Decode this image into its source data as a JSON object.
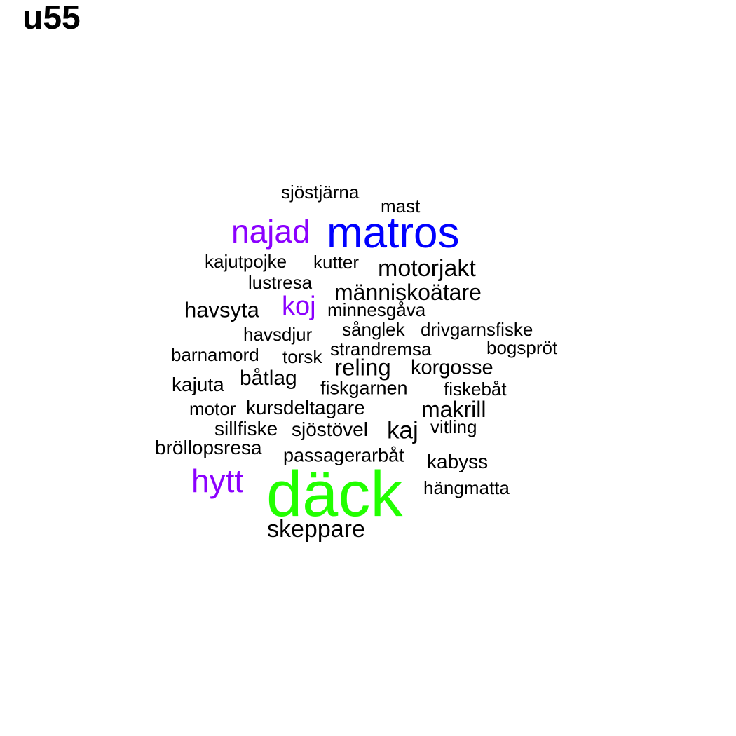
{
  "title": "u55",
  "colors": {
    "default": "#000000",
    "blue": "#0000ff",
    "purple": "#8b00ff",
    "green": "#22ff00"
  },
  "words": [
    {
      "text": "sjöstjärna",
      "color": "#000000"
    },
    {
      "text": "mast",
      "color": "#000000"
    },
    {
      "text": "najad",
      "color": "#8b00ff"
    },
    {
      "text": "matros",
      "color": "#0000ff"
    },
    {
      "text": "kajutpojke",
      "color": "#000000"
    },
    {
      "text": "kutter",
      "color": "#000000"
    },
    {
      "text": "motorjakt",
      "color": "#000000"
    },
    {
      "text": "lustresa",
      "color": "#000000"
    },
    {
      "text": "människoätare",
      "color": "#000000"
    },
    {
      "text": "havsyta",
      "color": "#000000"
    },
    {
      "text": "koj",
      "color": "#8b00ff"
    },
    {
      "text": "minnesgåva",
      "color": "#000000"
    },
    {
      "text": "havsdjur",
      "color": "#000000"
    },
    {
      "text": "sånglek",
      "color": "#000000"
    },
    {
      "text": "drivgarnsfiske",
      "color": "#000000"
    },
    {
      "text": "barnamord",
      "color": "#000000"
    },
    {
      "text": "torsk",
      "color": "#000000"
    },
    {
      "text": "strandremsa",
      "color": "#000000"
    },
    {
      "text": "bogspröt",
      "color": "#000000"
    },
    {
      "text": "reling",
      "color": "#000000"
    },
    {
      "text": "korgosse",
      "color": "#000000"
    },
    {
      "text": "kajuta",
      "color": "#000000"
    },
    {
      "text": "båtlag",
      "color": "#000000"
    },
    {
      "text": "fiskgarnen",
      "color": "#000000"
    },
    {
      "text": "fiskebåt",
      "color": "#000000"
    },
    {
      "text": "motor",
      "color": "#000000"
    },
    {
      "text": "kursdeltagare",
      "color": "#000000"
    },
    {
      "text": "makrill",
      "color": "#000000"
    },
    {
      "text": "sillfiske",
      "color": "#000000"
    },
    {
      "text": "sjöstövel",
      "color": "#000000"
    },
    {
      "text": "kaj",
      "color": "#000000"
    },
    {
      "text": "vitling",
      "color": "#000000"
    },
    {
      "text": "bröllopsresa",
      "color": "#000000"
    },
    {
      "text": "passagerarbåt",
      "color": "#000000"
    },
    {
      "text": "kabyss",
      "color": "#000000"
    },
    {
      "text": "hytt",
      "color": "#8b00ff"
    },
    {
      "text": "däck",
      "color": "#22ff00"
    },
    {
      "text": "hängmatta",
      "color": "#000000"
    },
    {
      "text": "skeppare",
      "color": "#000000"
    }
  ]
}
